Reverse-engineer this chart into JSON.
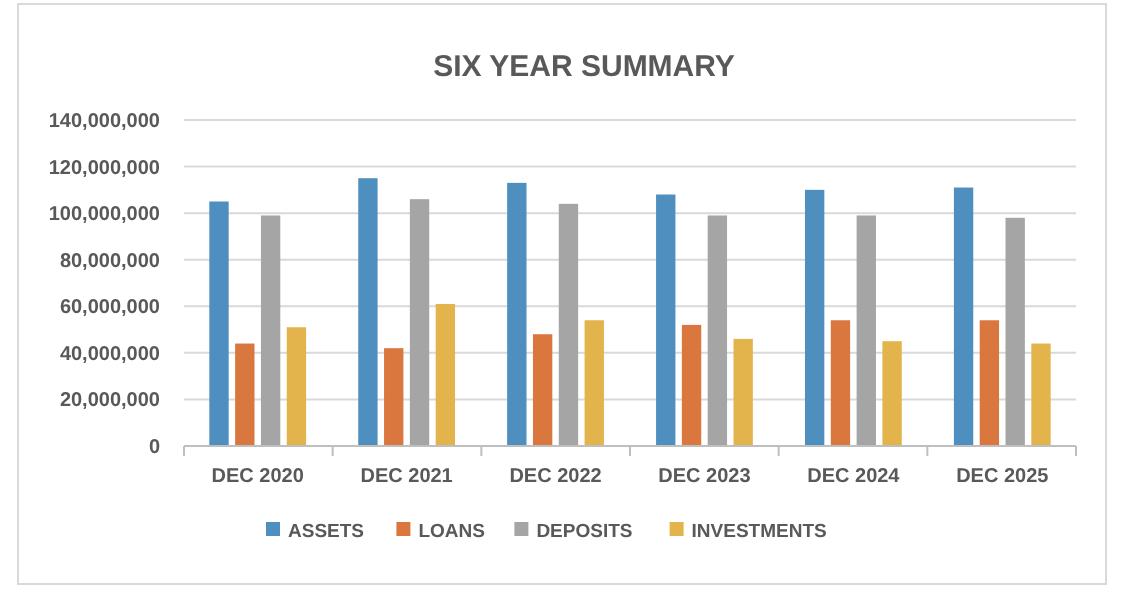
{
  "chart_data": {
    "type": "bar",
    "title": "SIX YEAR SUMMARY",
    "categories": [
      "DEC 2020",
      "DEC 2021",
      "DEC 2022",
      "DEC 2023",
      "DEC 2024",
      "DEC 2025"
    ],
    "series": [
      {
        "name": "ASSETS",
        "color": "#4f8fc0",
        "values": [
          105000000,
          115000000,
          113000000,
          108000000,
          110000000,
          111000000
        ]
      },
      {
        "name": "LOANS",
        "color": "#d9773f",
        "values": [
          44000000,
          42000000,
          48000000,
          52000000,
          54000000,
          54000000
        ]
      },
      {
        "name": "DEPOSITS",
        "color": "#a5a5a5",
        "values": [
          99000000,
          106000000,
          104000000,
          99000000,
          99000000,
          98000000
        ]
      },
      {
        "name": "INVESTMENTS",
        "color": "#e3b44b",
        "values": [
          51000000,
          61000000,
          54000000,
          46000000,
          45000000,
          44000000
        ]
      }
    ],
    "ylim": [
      0,
      140000000
    ],
    "yticks": [
      0,
      {
        "value": 20000000,
        "label": "20,000,000"
      },
      {
        "value": 40000000,
        "label": "40,000,000"
      },
      {
        "value": 60000000,
        "label": "60,000,000"
      },
      {
        "value": 80000000,
        "label": "80,000,000"
      },
      {
        "value": 100000000,
        "label": "100,000,000"
      },
      {
        "value": 120000000,
        "label": "120,000,000"
      },
      {
        "value": 140000000,
        "label": "140,000,000"
      }
    ],
    "grid": "y",
    "legend": "bottom"
  }
}
